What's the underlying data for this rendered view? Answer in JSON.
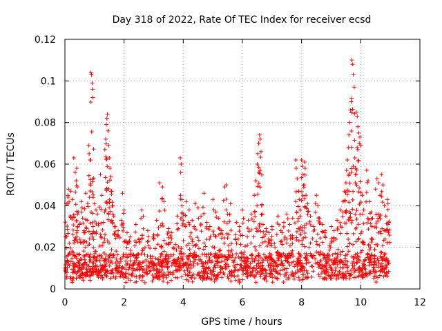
{
  "chart_data": {
    "type": "scatter",
    "title": "Day 318 of 2022, Rate Of TEC Index for receiver ecsd",
    "xlabel": "GPS time / hours",
    "ylabel": "ROTI / TECUs",
    "xlim": [
      0,
      12
    ],
    "ylim": [
      0,
      0.12
    ],
    "xticks": [
      0,
      2,
      4,
      6,
      8,
      10,
      12
    ],
    "xtick_labels": [
      "0",
      "2",
      "4",
      "6",
      "8",
      "10",
      "12"
    ],
    "yticks": [
      0,
      0.02,
      0.04,
      0.06,
      0.08,
      0.1,
      0.12
    ],
    "ytick_labels": [
      "0",
      "0.02",
      "0.04",
      "0.06",
      "0.08",
      "0.1",
      "0.12"
    ],
    "grid": true,
    "marker": "+",
    "color": "#ff0000",
    "baseline": {
      "x_start": 0,
      "x_end": 10.95,
      "y_min": 0.003,
      "y_max": 0.022,
      "typical": 0.011
    },
    "series": [
      {
        "name": "ROTI",
        "points": [
          [
            0.05,
            0.041
          ],
          [
            0.1,
            0.045
          ],
          [
            0.12,
            0.048
          ],
          [
            0.2,
            0.047
          ],
          [
            0.25,
            0.043
          ],
          [
            0.3,
            0.035
          ],
          [
            0.3,
            0.063
          ],
          [
            0.35,
            0.056
          ],
          [
            0.38,
            0.052
          ],
          [
            0.4,
            0.058
          ],
          [
            0.42,
            0.049
          ],
          [
            0.45,
            0.037
          ],
          [
            0.5,
            0.031
          ],
          [
            0.55,
            0.042
          ],
          [
            0.6,
            0.034
          ],
          [
            0.65,
            0.028
          ],
          [
            0.7,
            0.046
          ],
          [
            0.75,
            0.033
          ],
          [
            0.8,
            0.069
          ],
          [
            0.82,
            0.065
          ],
          [
            0.85,
            0.062
          ],
          [
            0.88,
            0.104
          ],
          [
            0.9,
            0.103
          ],
          [
            0.92,
            0.099
          ],
          [
            0.93,
            0.096
          ],
          [
            0.94,
            0.092
          ],
          [
            0.95,
            0.044
          ],
          [
            1.0,
            0.041
          ],
          [
            1.05,
            0.038
          ],
          [
            1.1,
            0.036
          ],
          [
            1.2,
            0.055
          ],
          [
            1.25,
            0.045
          ],
          [
            1.3,
            0.032
          ],
          [
            1.35,
            0.067
          ],
          [
            1.38,
            0.072
          ],
          [
            1.4,
            0.079
          ],
          [
            1.42,
            0.082
          ],
          [
            1.44,
            0.084
          ],
          [
            1.46,
            0.076
          ],
          [
            1.48,
            0.069
          ],
          [
            1.5,
            0.063
          ],
          [
            1.52,
            0.058
          ],
          [
            1.55,
            0.054
          ],
          [
            1.58,
            0.047
          ],
          [
            1.6,
            0.04
          ],
          [
            1.65,
            0.035
          ],
          [
            1.7,
            0.03
          ],
          [
            1.8,
            0.028
          ],
          [
            1.9,
            0.033
          ],
          [
            1.95,
            0.046
          ],
          [
            2.0,
            0.038
          ],
          [
            2.1,
            0.027
          ],
          [
            2.2,
            0.025
          ],
          [
            2.4,
            0.031
          ],
          [
            2.5,
            0.024
          ],
          [
            2.6,
            0.038
          ],
          [
            2.65,
            0.035
          ],
          [
            2.8,
            0.028
          ],
          [
            3.0,
            0.026
          ],
          [
            3.1,
            0.033
          ],
          [
            3.2,
            0.051
          ],
          [
            3.3,
            0.049
          ],
          [
            3.35,
            0.042
          ],
          [
            3.5,
            0.029
          ],
          [
            3.6,
            0.027
          ],
          [
            3.8,
            0.035
          ],
          [
            3.9,
            0.063
          ],
          [
            3.93,
            0.06
          ],
          [
            3.96,
            0.04
          ],
          [
            4.0,
            0.036
          ],
          [
            4.1,
            0.042
          ],
          [
            4.2,
            0.038
          ],
          [
            4.3,
            0.033
          ],
          [
            4.4,
            0.041
          ],
          [
            4.5,
            0.039
          ],
          [
            4.6,
            0.035
          ],
          [
            4.7,
            0.046
          ],
          [
            4.8,
            0.032
          ],
          [
            4.9,
            0.03
          ],
          [
            5.0,
            0.043
          ],
          [
            5.1,
            0.037
          ],
          [
            5.2,
            0.034
          ],
          [
            5.3,
            0.028
          ],
          [
            5.4,
            0.049
          ],
          [
            5.45,
            0.05
          ],
          [
            5.5,
            0.036
          ],
          [
            5.6,
            0.041
          ],
          [
            5.8,
            0.032
          ],
          [
            5.9,
            0.03
          ],
          [
            6.0,
            0.038
          ],
          [
            6.2,
            0.033
          ],
          [
            6.3,
            0.036
          ],
          [
            6.4,
            0.045
          ],
          [
            6.45,
            0.052
          ],
          [
            6.5,
            0.06
          ],
          [
            6.52,
            0.065
          ],
          [
            6.55,
            0.07
          ],
          [
            6.58,
            0.074
          ],
          [
            6.6,
            0.072
          ],
          [
            6.63,
            0.066
          ],
          [
            6.65,
            0.04
          ],
          [
            6.7,
            0.031
          ],
          [
            6.8,
            0.029
          ],
          [
            6.9,
            0.027
          ],
          [
            7.0,
            0.03
          ],
          [
            7.2,
            0.035
          ],
          [
            7.3,
            0.028
          ],
          [
            7.4,
            0.032
          ],
          [
            7.5,
            0.036
          ],
          [
            7.6,
            0.031
          ],
          [
            7.7,
            0.034
          ],
          [
            7.8,
            0.062
          ],
          [
            7.82,
            0.058
          ],
          [
            7.85,
            0.053
          ],
          [
            7.9,
            0.047
          ],
          [
            7.92,
            0.043
          ],
          [
            7.95,
            0.038
          ],
          [
            8.0,
            0.062
          ],
          [
            8.02,
            0.059
          ],
          [
            8.05,
            0.055
          ],
          [
            8.08,
            0.05
          ],
          [
            8.1,
            0.061
          ],
          [
            8.12,
            0.058
          ],
          [
            8.15,
            0.045
          ],
          [
            8.2,
            0.041
          ],
          [
            8.3,
            0.035
          ],
          [
            8.4,
            0.03
          ],
          [
            8.5,
            0.045
          ],
          [
            8.55,
            0.04
          ],
          [
            8.6,
            0.034
          ],
          [
            8.7,
            0.031
          ],
          [
            8.8,
            0.028
          ],
          [
            9.0,
            0.03
          ],
          [
            9.1,
            0.028
          ],
          [
            9.2,
            0.033
          ],
          [
            9.3,
            0.038
          ],
          [
            9.4,
            0.042
          ],
          [
            9.45,
            0.047
          ],
          [
            9.5,
            0.051
          ],
          [
            9.52,
            0.057
          ],
          [
            9.55,
            0.062
          ],
          [
            9.58,
            0.068
          ],
          [
            9.6,
            0.074
          ],
          [
            9.62,
            0.08
          ],
          [
            9.65,
            0.086
          ],
          [
            9.68,
            0.09
          ],
          [
            9.7,
            0.11
          ],
          [
            9.72,
            0.108
          ],
          [
            9.75,
            0.103
          ],
          [
            9.78,
            0.097
          ],
          [
            9.8,
            0.063
          ],
          [
            9.82,
            0.058
          ],
          [
            9.85,
            0.085
          ],
          [
            9.88,
            0.083
          ],
          [
            9.9,
            0.078
          ],
          [
            9.93,
            0.075
          ],
          [
            9.95,
            0.07
          ],
          [
            9.97,
            0.073
          ],
          [
            10.0,
            0.069
          ],
          [
            10.05,
            0.045
          ],
          [
            10.1,
            0.038
          ],
          [
            10.2,
            0.057
          ],
          [
            10.25,
            0.052
          ],
          [
            10.3,
            0.042
          ],
          [
            10.35,
            0.037
          ],
          [
            10.4,
            0.034
          ],
          [
            10.5,
            0.048
          ],
          [
            10.55,
            0.053
          ],
          [
            10.6,
            0.051
          ],
          [
            10.65,
            0.045
          ],
          [
            10.7,
            0.055
          ],
          [
            10.75,
            0.05
          ],
          [
            10.8,
            0.04
          ],
          [
            10.85,
            0.035
          ],
          [
            10.9,
            0.043
          ],
          [
            10.92,
            0.041
          ],
          [
            10.95,
            0.032
          ]
        ]
      }
    ]
  }
}
